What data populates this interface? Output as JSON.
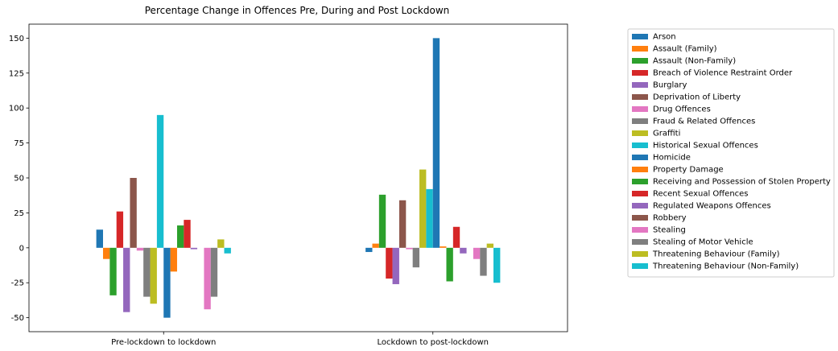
{
  "chart_data": {
    "type": "bar",
    "title": "Percentage Change in Offences Pre, During and Post Lockdown",
    "xlabel": "",
    "ylabel": "",
    "categories": [
      "Pre-lockdown to lockdown",
      "Lockdown to post-lockdown"
    ],
    "ylim": [
      -60,
      160
    ],
    "yticks": [
      -50,
      -25,
      0,
      25,
      50,
      75,
      100,
      125,
      150
    ],
    "grid": false,
    "legend_position": "right",
    "series": [
      {
        "name": "Arson",
        "color": "#1f77b4",
        "values": [
          13,
          -3
        ]
      },
      {
        "name": "Assault (Family)",
        "color": "#ff7f0e",
        "values": [
          -8,
          3
        ]
      },
      {
        "name": "Assault (Non-Family)",
        "color": "#2ca02c",
        "values": [
          -34,
          38
        ]
      },
      {
        "name": "Breach of Violence Restraint Order",
        "color": "#d62728",
        "values": [
          26,
          -22
        ]
      },
      {
        "name": "Burglary",
        "color": "#9467bd",
        "values": [
          -46,
          -26
        ]
      },
      {
        "name": "Deprivation of Liberty",
        "color": "#8c564b",
        "values": [
          50,
          34
        ]
      },
      {
        "name": "Drug Offences",
        "color": "#e377c2",
        "values": [
          -2,
          -1
        ]
      },
      {
        "name": "Fraud & Related Offences",
        "color": "#7f7f7f",
        "values": [
          -35,
          -14
        ]
      },
      {
        "name": "Graffiti",
        "color": "#bcbd22",
        "values": [
          -40,
          56
        ]
      },
      {
        "name": "Historical Sexual Offences",
        "color": "#17becf",
        "values": [
          95,
          42
        ]
      },
      {
        "name": "Homicide",
        "color": "#1f77b4",
        "values": [
          -50,
          150
        ]
      },
      {
        "name": "Property Damage",
        "color": "#ff7f0e",
        "values": [
          -17,
          1
        ]
      },
      {
        "name": "Receiving and Possession of Stolen Property",
        "color": "#2ca02c",
        "values": [
          16,
          -24
        ]
      },
      {
        "name": "Recent Sexual Offences",
        "color": "#d62728",
        "values": [
          20,
          15
        ]
      },
      {
        "name": "Regulated Weapons Offences",
        "color": "#9467bd",
        "values": [
          -1,
          -4
        ]
      },
      {
        "name": "Robbery",
        "color": "#8c564b",
        "values": [
          0,
          0
        ]
      },
      {
        "name": "Stealing",
        "color": "#e377c2",
        "values": [
          -44,
          -8
        ]
      },
      {
        "name": "Stealing of Motor Vehicle",
        "color": "#7f7f7f",
        "values": [
          -35,
          -20
        ]
      },
      {
        "name": "Threatening Behaviour (Family)",
        "color": "#bcbd22",
        "values": [
          6,
          3
        ]
      },
      {
        "name": "Threatening Behaviour (Non-Family)",
        "color": "#17becf",
        "values": [
          -4,
          -25
        ]
      }
    ]
  }
}
